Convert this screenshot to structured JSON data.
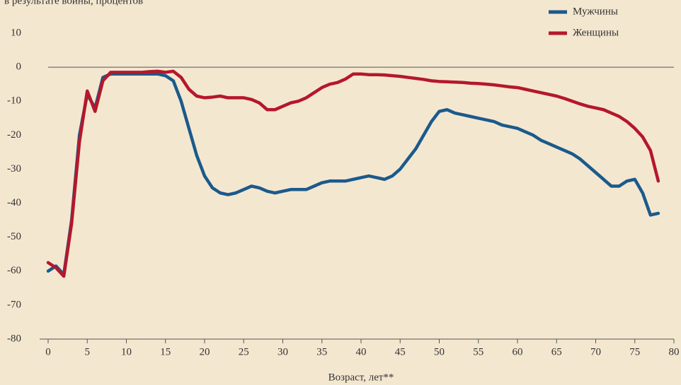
{
  "chart_data": {
    "type": "line",
    "subtitle": "в результате войны, процентов",
    "xlabel": "Возраст, лет**",
    "x": [
      0,
      1,
      2,
      3,
      4,
      5,
      6,
      7,
      8,
      9,
      10,
      11,
      12,
      13,
      14,
      15,
      16,
      17,
      18,
      19,
      20,
      21,
      22,
      23,
      24,
      25,
      26,
      27,
      28,
      29,
      30,
      31,
      32,
      33,
      34,
      35,
      36,
      37,
      38,
      39,
      40,
      41,
      42,
      43,
      44,
      45,
      46,
      47,
      48,
      49,
      50,
      51,
      52,
      53,
      54,
      55,
      56,
      57,
      58,
      59,
      60,
      61,
      62,
      63,
      64,
      65,
      66,
      67,
      68,
      69,
      70,
      71,
      72,
      73,
      74,
      75,
      76,
      77,
      78
    ],
    "series": [
      {
        "name": "Мужчины",
        "color": "#1b5a8c",
        "values": [
          -60,
          -58.5,
          -61,
          -45,
          -20,
          -8,
          -12,
          -3,
          -2,
          -2,
          -2,
          -2,
          -2,
          -2,
          -2,
          -2.5,
          -4,
          -10,
          -18,
          -26,
          -32,
          -35.5,
          -37,
          -37.5,
          -37,
          -36,
          -35,
          -35.5,
          -36.5,
          -37,
          -36.5,
          -36,
          -36,
          -36,
          -35,
          -34,
          -33.5,
          -33.5,
          -33.5,
          -33,
          -32.5,
          -32,
          -32.5,
          -33,
          -32,
          -30,
          -27,
          -24,
          -20,
          -16,
          -13,
          -12.5,
          -13.5,
          -14,
          -14.5,
          -15,
          -15.5,
          -16,
          -17,
          -17.5,
          -18,
          -19,
          -20,
          -21.5,
          -22.5,
          -23.5,
          -24.5,
          -25.5,
          -27,
          -29,
          -31,
          -33,
          -35,
          -35,
          -33.5,
          -33,
          -37,
          -43.5,
          -43
        ]
      },
      {
        "name": "Женщины",
        "color": "#b5172b",
        "values": [
          -57.5,
          -59,
          -61.5,
          -46,
          -22,
          -7,
          -13,
          -4,
          -1.5,
          -1.5,
          -1.5,
          -1.5,
          -1.5,
          -1.3,
          -1.2,
          -1.5,
          -1.2,
          -3,
          -6.5,
          -8.5,
          -9,
          -8.8,
          -8.5,
          -9,
          -9,
          -9,
          -9.5,
          -10.5,
          -12.5,
          -12.5,
          -11.5,
          -10.5,
          -10,
          -9,
          -7.5,
          -6,
          -5,
          -4.5,
          -3.5,
          -2,
          -2,
          -2.2,
          -2.2,
          -2.3,
          -2.5,
          -2.7,
          -3,
          -3.3,
          -3.6,
          -4,
          -4.2,
          -4.3,
          -4.4,
          -4.5,
          -4.7,
          -4.8,
          -5,
          -5.2,
          -5.5,
          -5.8,
          -6,
          -6.5,
          -7,
          -7.5,
          -8,
          -8.5,
          -9.2,
          -10,
          -10.8,
          -11.5,
          -12,
          -12.5,
          -13.5,
          -14.5,
          -16,
          -18,
          -20.5,
          -24.5,
          -33.5
        ]
      }
    ],
    "xlim": [
      0,
      80
    ],
    "xticks": [
      0,
      5,
      10,
      15,
      20,
      25,
      30,
      35,
      40,
      45,
      50,
      55,
      60,
      65,
      70,
      75,
      80
    ],
    "ylim": [
      -80,
      10
    ],
    "yticks": [
      -80,
      -70,
      -60,
      -50,
      -40,
      -30,
      -20,
      -10,
      0,
      10
    ],
    "legend": "top-right"
  }
}
